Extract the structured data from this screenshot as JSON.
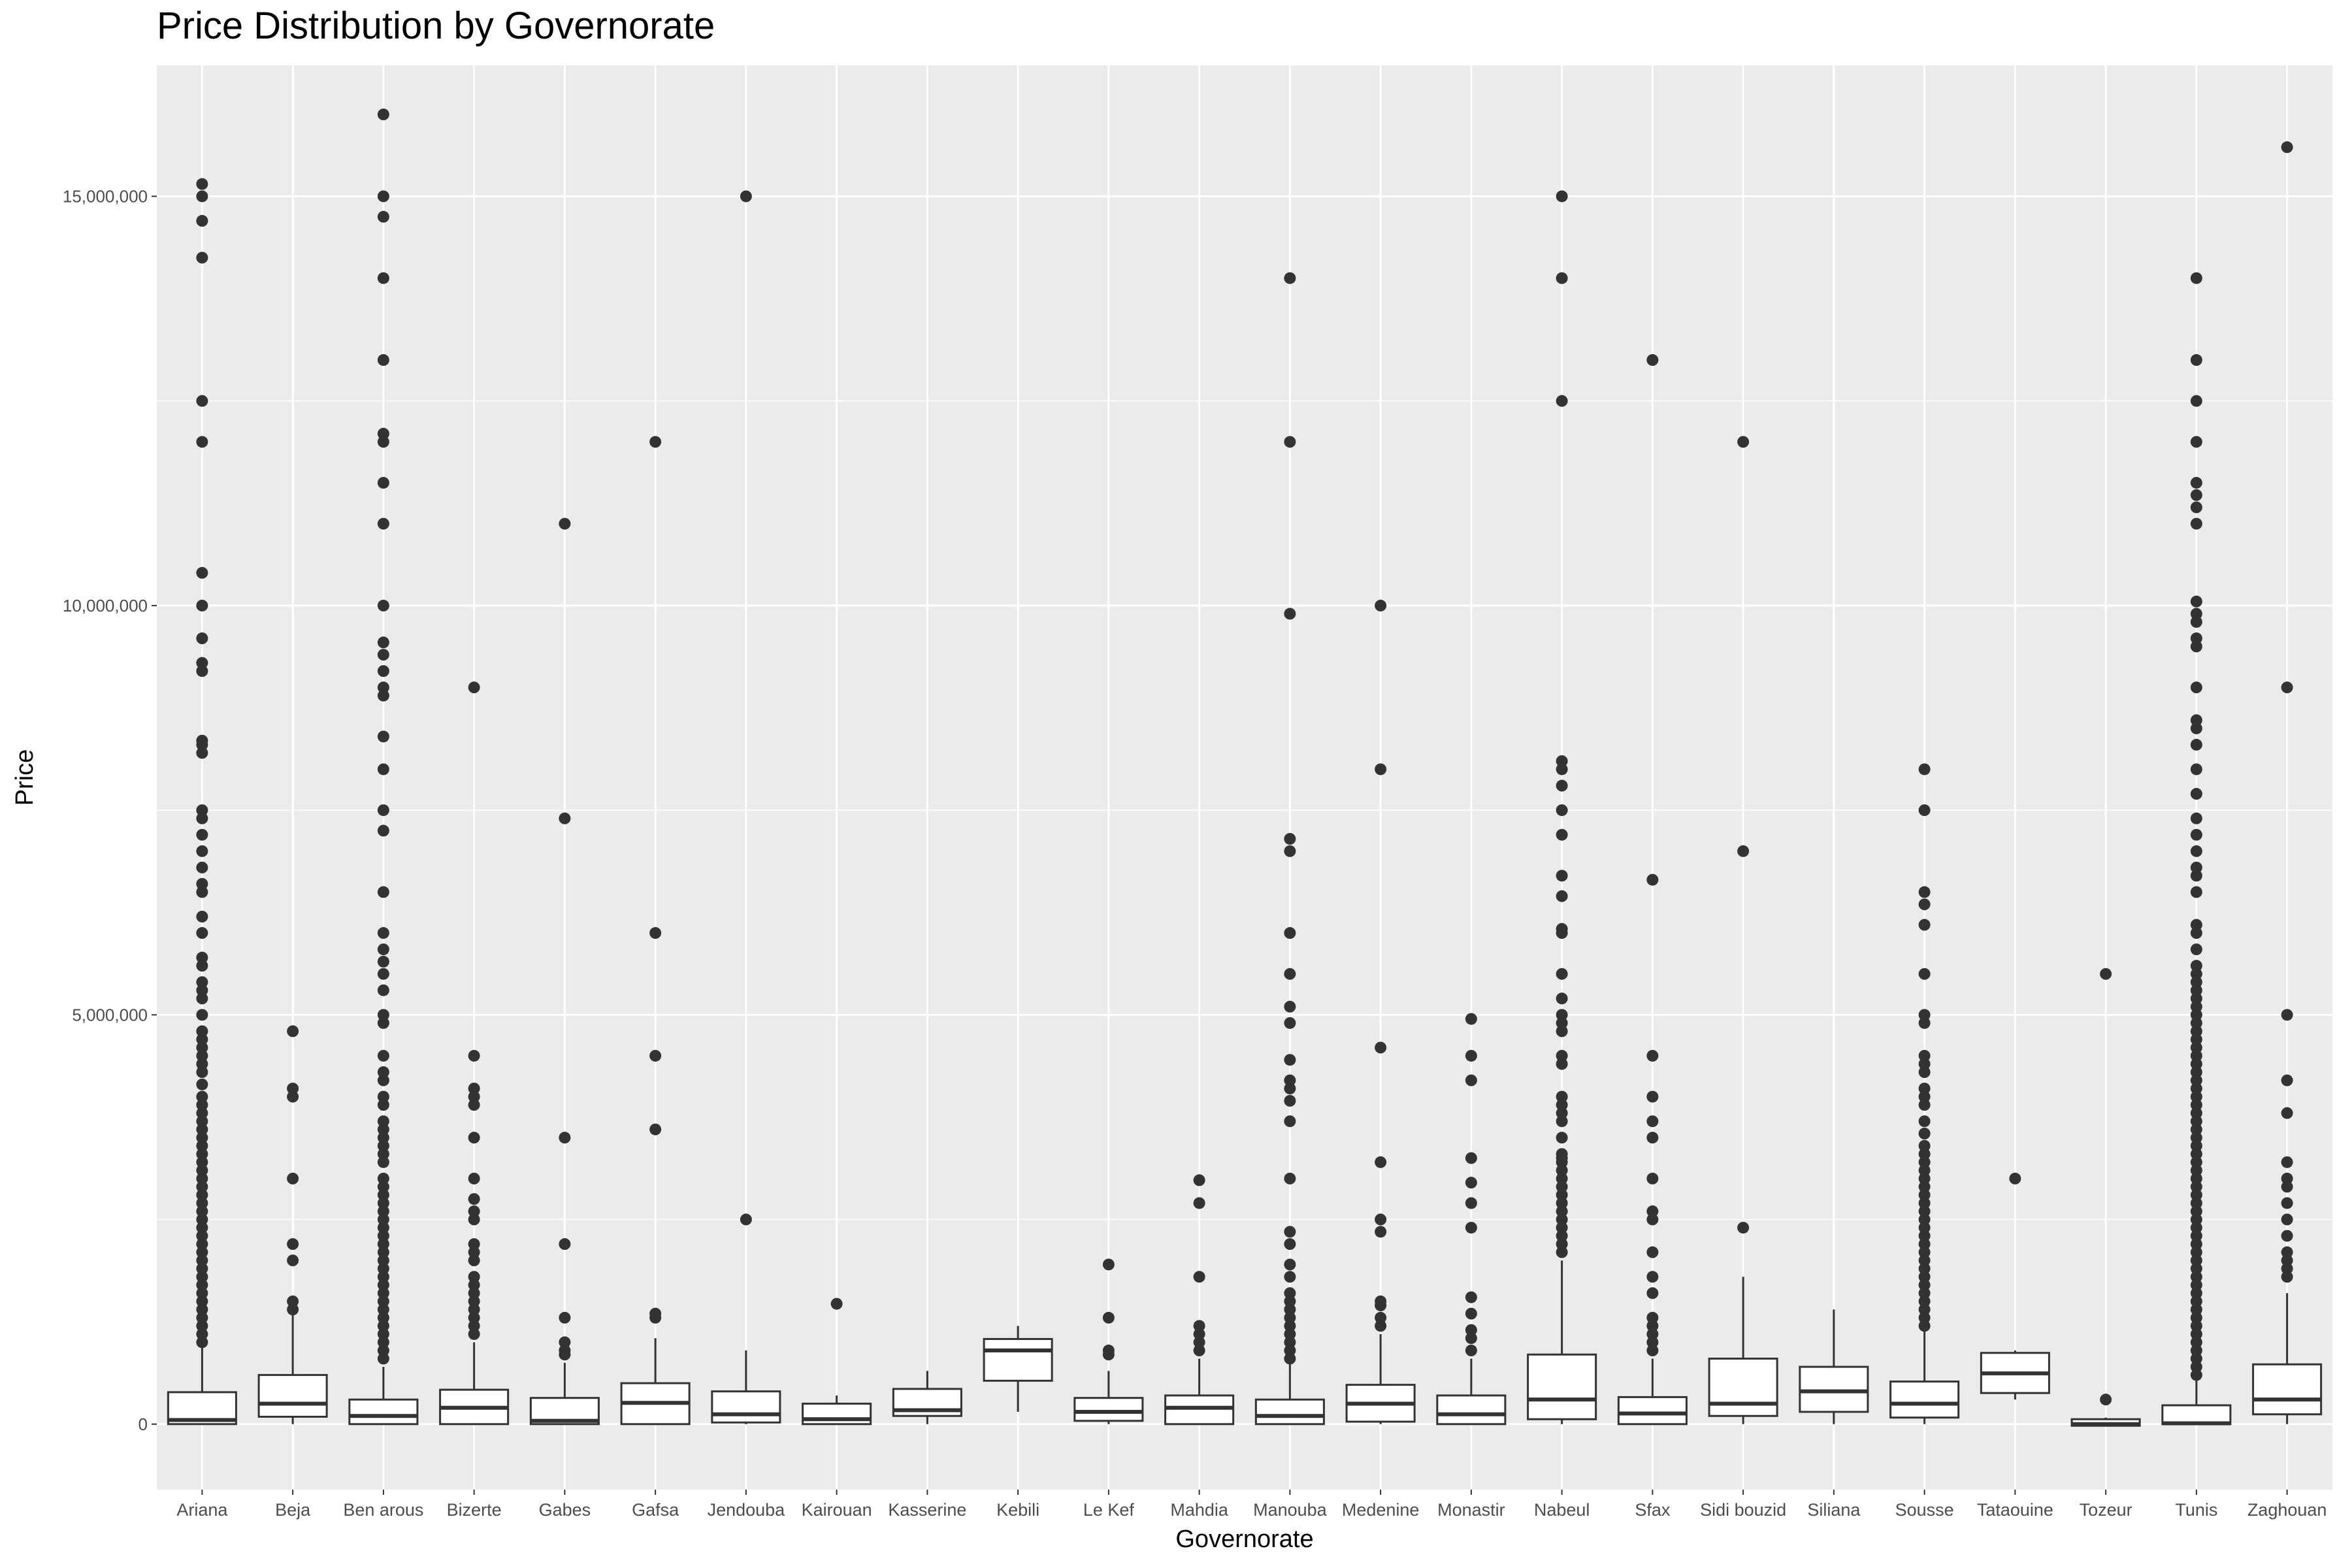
{
  "chart_data": {
    "type": "boxplot",
    "title": "Price Distribution by Governorate",
    "xlabel": "Governorate",
    "ylabel": "Price",
    "ylim": [
      -800000,
      16600000
    ],
    "y_ticks": [
      0,
      5000000,
      10000000,
      15000000
    ],
    "y_tick_labels": [
      "0",
      "5,000,000",
      "10,000,000",
      "15,000,000"
    ],
    "grid": true,
    "categories": [
      "Ariana",
      "Beja",
      "Ben arous",
      "Bizerte",
      "Gabes",
      "Gafsa",
      "Jendouba",
      "Kairouan",
      "Kasserine",
      "Kebili",
      "Le Kef",
      "Mahdia",
      "Manouba",
      "Medenine",
      "Monastir",
      "Nabeul",
      "Sfax",
      "Sidi bouzid",
      "Siliana",
      "Sousse",
      "Tataouine",
      "Tozeur",
      "Tunis",
      "Zaghouan"
    ],
    "boxes": [
      {
        "q1": 0,
        "median": 50000,
        "q3": 390000,
        "wmin": 0,
        "wmax": 950000,
        "outliers": [
          15150000,
          15000000,
          14700000,
          14250000,
          12500000,
          12000000,
          10400000,
          10000000,
          9600000,
          9300000,
          9200000,
          8350000,
          8300000,
          8200000,
          7500000,
          7400000,
          7200000,
          7000000,
          6800000,
          6600000,
          6500000,
          6200000,
          6000000,
          5700000,
          5600000,
          5400000,
          5300000,
          5200000,
          5000000,
          4800000,
          4700000,
          4600000,
          4500000,
          4400000,
          4300000,
          4150000,
          4000000,
          3900000,
          3800000,
          3700000,
          3600000,
          3500000,
          3400000,
          3300000,
          3200000,
          3100000,
          3000000,
          2900000,
          2800000,
          2700000,
          2600000,
          2500000,
          2400000,
          2300000,
          2200000,
          2100000,
          2000000,
          1900000,
          1800000,
          1700000,
          1600000,
          1500000,
          1400000,
          1300000,
          1200000,
          1100000,
          1000000
        ]
      },
      {
        "q1": 90000,
        "median": 250000,
        "q3": 600000,
        "wmin": 0,
        "wmax": 1350000,
        "outliers": [
          4800000,
          4100000,
          4000000,
          3000000,
          2200000,
          2000000,
          1500000,
          1400000
        ]
      },
      {
        "q1": 0,
        "median": 100000,
        "q3": 300000,
        "wmin": 0,
        "wmax": 700000,
        "outliers": [
          16000000,
          15000000,
          14750000,
          14000000,
          13000000,
          12100000,
          12000000,
          11500000,
          11000000,
          10000000,
          9550000,
          9400000,
          9200000,
          9000000,
          8900000,
          8400000,
          8000000,
          7500000,
          7250000,
          6500000,
          6000000,
          5800000,
          5650000,
          5500000,
          5300000,
          5000000,
          4900000,
          4500000,
          4300000,
          4200000,
          4000000,
          3900000,
          3700000,
          3600000,
          3500000,
          3400000,
          3300000,
          3200000,
          3000000,
          2900000,
          2800000,
          2700000,
          2600000,
          2500000,
          2400000,
          2300000,
          2200000,
          2100000,
          2000000,
          1900000,
          1800000,
          1700000,
          1600000,
          1500000,
          1400000,
          1300000,
          1200000,
          1100000,
          1000000,
          900000,
          800000
        ]
      },
      {
        "q1": 0,
        "median": 200000,
        "q3": 420000,
        "wmin": 0,
        "wmax": 1000000,
        "outliers": [
          9000000,
          4500000,
          4100000,
          4000000,
          3900000,
          3500000,
          3000000,
          2750000,
          2600000,
          2500000,
          2200000,
          2100000,
          2000000,
          1800000,
          1700000,
          1600000,
          1500000,
          1400000,
          1300000,
          1200000,
          1100000
        ]
      },
      {
        "q1": 0,
        "median": 40000,
        "q3": 320000,
        "wmin": 0,
        "wmax": 750000,
        "outliers": [
          11000000,
          7400000,
          3500000,
          2200000,
          1300000,
          1000000,
          900000,
          850000
        ]
      },
      {
        "q1": 0,
        "median": 260000,
        "q3": 500000,
        "wmin": 0,
        "wmax": 1050000,
        "outliers": [
          12000000,
          6000000,
          4500000,
          3600000,
          1350000,
          1300000
        ]
      },
      {
        "q1": 20000,
        "median": 120000,
        "q3": 400000,
        "wmin": 0,
        "wmax": 900000,
        "outliers": [
          15000000,
          2500000
        ]
      },
      {
        "q1": 0,
        "median": 60000,
        "q3": 250000,
        "wmin": 0,
        "wmax": 350000,
        "outliers": [
          1470000
        ]
      },
      {
        "q1": 100000,
        "median": 170000,
        "q3": 430000,
        "wmin": 0,
        "wmax": 650000,
        "outliers": []
      },
      {
        "q1": 530000,
        "median": 900000,
        "q3": 1040000,
        "wmin": 150000,
        "wmax": 1200000,
        "outliers": []
      },
      {
        "q1": 40000,
        "median": 150000,
        "q3": 320000,
        "wmin": 0,
        "wmax": 650000,
        "outliers": [
          1950000,
          1300000,
          900000,
          850000
        ]
      },
      {
        "q1": 0,
        "median": 200000,
        "q3": 350000,
        "wmin": 0,
        "wmax": 800000,
        "outliers": [
          2980000,
          2700000,
          1800000,
          1200000,
          1100000,
          1000000,
          900000
        ]
      },
      {
        "q1": 0,
        "median": 100000,
        "q3": 300000,
        "wmin": 0,
        "wmax": 750000,
        "outliers": [
          14000000,
          12000000,
          9900000,
          7150000,
          7000000,
          6000000,
          5500000,
          5100000,
          4900000,
          4450000,
          4200000,
          4100000,
          3950000,
          3700000,
          3000000,
          2350000,
          2200000,
          1950000,
          1800000,
          1600000,
          1500000,
          1400000,
          1300000,
          1200000,
          1100000,
          1000000,
          900000,
          800000
        ]
      },
      {
        "q1": 30000,
        "median": 250000,
        "q3": 480000,
        "wmin": 0,
        "wmax": 1100000,
        "outliers": [
          10000000,
          8000000,
          4600000,
          3200000,
          2500000,
          2350000,
          1500000,
          1450000,
          1300000,
          1200000
        ]
      },
      {
        "q1": 0,
        "median": 120000,
        "q3": 350000,
        "wmin": 0,
        "wmax": 800000,
        "outliers": [
          4950000,
          4500000,
          4200000,
          3250000,
          2950000,
          2700000,
          2400000,
          1550000,
          1350000,
          1150000,
          1050000,
          900000
        ]
      },
      {
        "q1": 60000,
        "median": 300000,
        "q3": 850000,
        "wmin": 0,
        "wmax": 2000000,
        "outliers": [
          15000000,
          14000000,
          12500000,
          8100000,
          8000000,
          7800000,
          7500000,
          7200000,
          6700000,
          6450000,
          6050000,
          6000000,
          5500000,
          5200000,
          5000000,
          4900000,
          4800000,
          4500000,
          4400000,
          4000000,
          3900000,
          3800000,
          3700000,
          3500000,
          3300000,
          3250000,
          3200000,
          3100000,
          3000000,
          2900000,
          2800000,
          2700000,
          2600000,
          2500000,
          2400000,
          2300000,
          2200000,
          2100000
        ]
      },
      {
        "q1": 0,
        "median": 130000,
        "q3": 330000,
        "wmin": 0,
        "wmax": 800000,
        "outliers": [
          13000000,
          6650000,
          4500000,
          4000000,
          3700000,
          3500000,
          3000000,
          2600000,
          2500000,
          2100000,
          1800000,
          1600000,
          1300000,
          1200000,
          1100000,
          1000000,
          900000
        ]
      },
      {
        "q1": 100000,
        "median": 250000,
        "q3": 800000,
        "wmin": 0,
        "wmax": 1800000,
        "outliers": [
          12000000,
          7000000,
          2400000
        ]
      },
      {
        "q1": 150000,
        "median": 400000,
        "q3": 700000,
        "wmin": 0,
        "wmax": 1400000,
        "outliers": []
      },
      {
        "q1": 80000,
        "median": 250000,
        "q3": 520000,
        "wmin": 0,
        "wmax": 1150000,
        "outliers": [
          8000000,
          7500000,
          6500000,
          6350000,
          6100000,
          5500000,
          5000000,
          4900000,
          4500000,
          4400000,
          4300000,
          4100000,
          4000000,
          3900000,
          3700000,
          3550000,
          3400000,
          3300000,
          3200000,
          3100000,
          3000000,
          2900000,
          2800000,
          2700000,
          2600000,
          2500000,
          2400000,
          2300000,
          2200000,
          2100000,
          2000000,
          1900000,
          1800000,
          1700000,
          1600000,
          1500000,
          1400000,
          1300000,
          1200000
        ]
      },
      {
        "q1": 380000,
        "median": 620000,
        "q3": 870000,
        "wmin": 300000,
        "wmax": 900000,
        "outliers": [
          3000000
        ]
      },
      {
        "q1": -20000,
        "median": 0,
        "q3": 60000,
        "wmin": -20000,
        "wmax": 80000,
        "outliers": [
          5500000,
          300000
        ]
      },
      {
        "q1": 0,
        "median": 10000,
        "q3": 230000,
        "wmin": 0,
        "wmax": 550000,
        "outliers": [
          14000000,
          13000000,
          12500000,
          12000000,
          11500000,
          11350000,
          11200000,
          11000000,
          10050000,
          9900000,
          9800000,
          9600000,
          9500000,
          9000000,
          8600000,
          8500000,
          8300000,
          8000000,
          7700000,
          7400000,
          7200000,
          7000000,
          6800000,
          6700000,
          6500000,
          6100000,
          6000000,
          5800000,
          5600000,
          5500000,
          5400000,
          5300000,
          5200000,
          5100000,
          5000000,
          4900000,
          4800000,
          4700000,
          4600000,
          4500000,
          4400000,
          4300000,
          4200000,
          4100000,
          4000000,
          3900000,
          3800000,
          3700000,
          3600000,
          3500000,
          3400000,
          3300000,
          3200000,
          3100000,
          3000000,
          2900000,
          2800000,
          2700000,
          2600000,
          2500000,
          2400000,
          2300000,
          2200000,
          2100000,
          2000000,
          1900000,
          1800000,
          1700000,
          1600000,
          1500000,
          1400000,
          1300000,
          1200000,
          1100000,
          1000000,
          900000,
          800000,
          700000,
          600000
        ]
      },
      {
        "q1": 120000,
        "median": 300000,
        "q3": 730000,
        "wmin": 0,
        "wmax": 1600000,
        "outliers": [
          15600000,
          9000000,
          5000000,
          4200000,
          3800000,
          3200000,
          3000000,
          2900000,
          2700000,
          2500000,
          2300000,
          2100000,
          2000000,
          1900000,
          1800000
        ]
      }
    ]
  }
}
